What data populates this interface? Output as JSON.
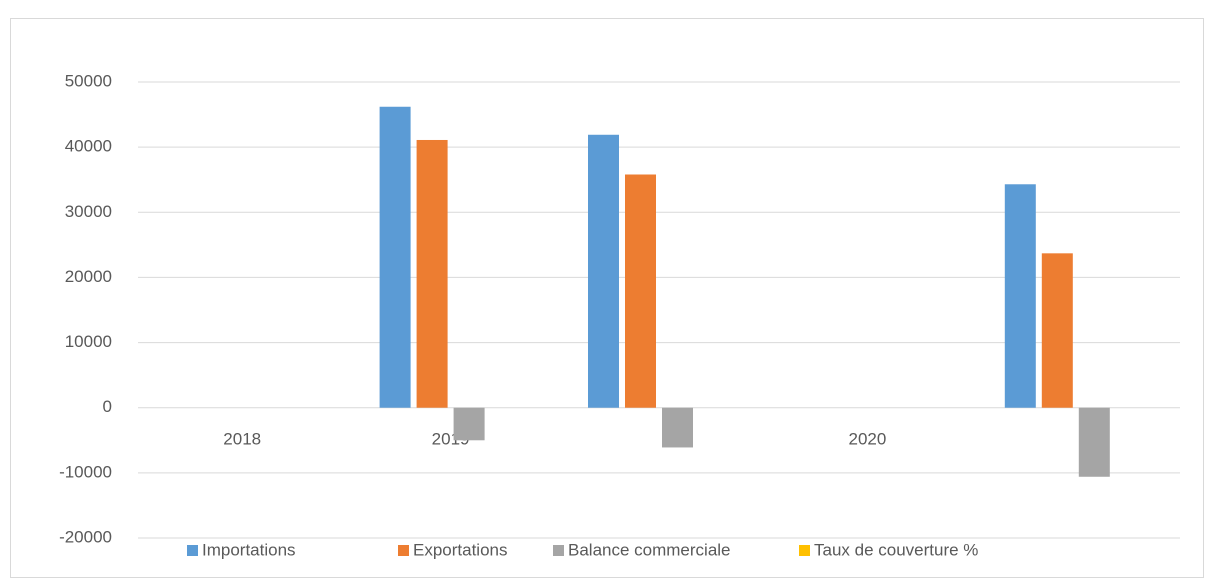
{
  "chart_data": {
    "type": "bar",
    "categories": [
      "2018",
      "2019",
      null,
      "2020",
      null
    ],
    "series": [
      {
        "name": "Importations",
        "color": "#5b9bd5",
        "values": [
          null,
          46200,
          41900,
          null,
          34300
        ]
      },
      {
        "name": "Exportations",
        "color": "#ed7d31",
        "values": [
          null,
          41100,
          35800,
          null,
          23700
        ]
      },
      {
        "name": "Balance commerciale",
        "color": "#a5a5a5",
        "values": [
          null,
          -5000,
          -6100,
          null,
          -10600
        ]
      },
      {
        "name": "Taux de couverture %",
        "color": "#ffc000",
        "values": [
          null,
          null,
          null,
          null,
          null
        ]
      }
    ],
    "ylim": [
      -20000,
      50000
    ],
    "yticks": [
      -20000,
      -10000,
      0,
      10000,
      20000,
      30000,
      40000,
      50000
    ],
    "grid": true,
    "legend": "bottom"
  }
}
